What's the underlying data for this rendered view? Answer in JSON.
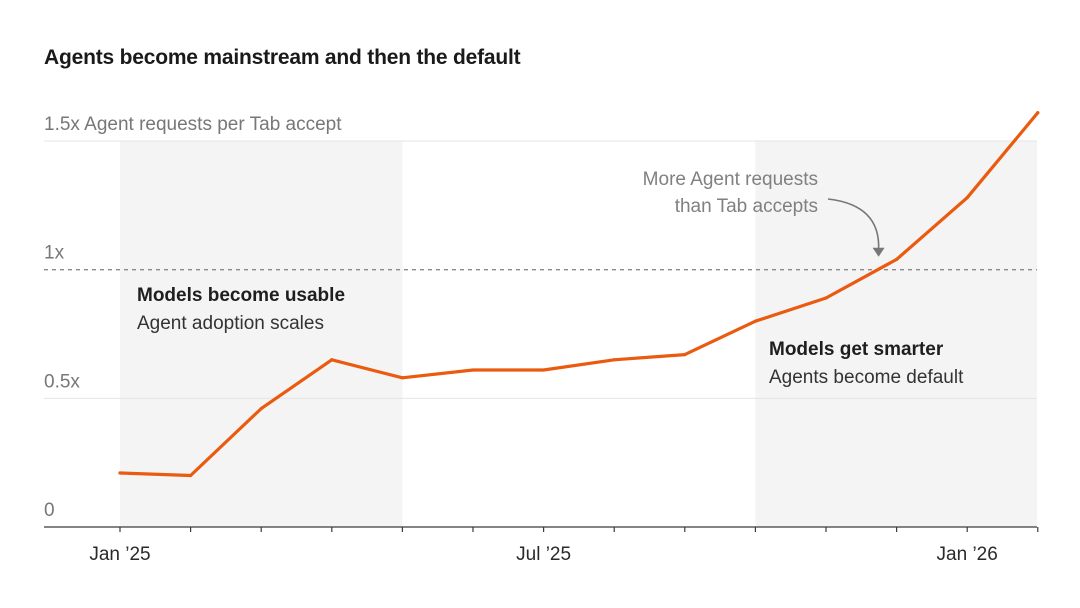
{
  "title": "Agents become mainstream and then the default",
  "chart_data": {
    "type": "line",
    "title": "Agents become mainstream and then the default",
    "ylabel": "Agent requests per Tab accept",
    "y_ticks": [
      {
        "value": 0,
        "label": "0"
      },
      {
        "value": 0.5,
        "label": "0.5x"
      },
      {
        "value": 1,
        "label": "1x"
      },
      {
        "value": 1.5,
        "label": "1.5x Agent requests per Tab accept"
      }
    ],
    "ylim": [
      0,
      1.5
    ],
    "x_ticks": [
      {
        "value": "2025-01",
        "label": "Jan ’25"
      },
      {
        "value": "2025-07",
        "label": "Jul ’25"
      },
      {
        "value": "2026-01",
        "label": "Jan ’26"
      }
    ],
    "xlim": [
      "2025-01",
      "2026-02"
    ],
    "x": [
      "2025-01",
      "2025-02",
      "2025-03",
      "2025-04",
      "2025-05",
      "2025-06",
      "2025-07",
      "2025-08",
      "2025-09",
      "2025-10",
      "2025-11",
      "2025-12",
      "2026-01",
      "2026-02"
    ],
    "series": [
      {
        "values": [
          0.21,
          0.2,
          0.46,
          0.65,
          0.58,
          0.61,
          0.61,
          0.65,
          0.67,
          0.8,
          0.89,
          1.04,
          1.28,
          1.61
        ],
        "color": "#ea5a0f"
      }
    ],
    "reference_line": {
      "value": 1,
      "style": "dashed"
    },
    "shaded_regions": [
      {
        "start": "2025-01",
        "end": "2025-05"
      },
      {
        "start": "2025-10",
        "end": "2026-02"
      }
    ],
    "annotations": [
      {
        "heading": "Models become usable",
        "text": "Agent adoption scales"
      },
      {
        "heading": "Models get smarter",
        "text": "Agents become default"
      },
      {
        "lines": [
          "More Agent requests",
          "than Tab accepts"
        ],
        "points_to": "2025-12"
      }
    ],
    "grid": true,
    "legend": "none"
  }
}
